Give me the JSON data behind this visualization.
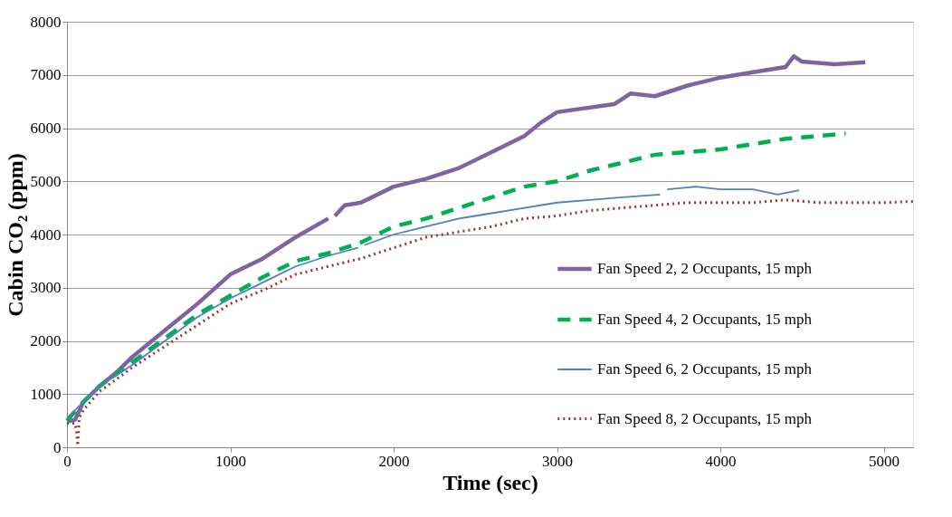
{
  "chart_data": {
    "type": "line",
    "xlabel": "Time (sec)",
    "ylabel": "Cabin CO₂ (ppm)",
    "xlim": [
      0,
      5180
    ],
    "xticks": [
      0,
      1000,
      2000,
      3000,
      4000,
      5000
    ],
    "ylim": [
      0,
      8000
    ],
    "yticks": [
      0,
      1000,
      2000,
      3000,
      4000,
      5000,
      6000,
      7000,
      8000
    ],
    "grid": "y",
    "legend": "right",
    "marker": "none",
    "series": [
      {
        "name": "Fan Speed 2, 2 Occupants, 15 mph",
        "color": "#8064a2",
        "line_style": "solid",
        "x": [
          0,
          50,
          100,
          200,
          300,
          400,
          500,
          600,
          800,
          1000,
          1200,
          1400,
          1600,
          1620,
          1640,
          1700,
          1800,
          2000,
          2200,
          2400,
          2600,
          2800,
          2900,
          3000,
          3350,
          3450,
          3600,
          3800,
          4000,
          4200,
          4400,
          4450,
          4500,
          4700,
          4887
        ],
        "values": [
          480,
          520,
          850,
          1150,
          1400,
          1700,
          1950,
          2200,
          2700,
          3250,
          3550,
          3950,
          4300,
          null,
          4350,
          4550,
          4600,
          4900,
          5050,
          5250,
          5550,
          5850,
          6100,
          6300,
          6450,
          6650,
          6600,
          6800,
          6950,
          7050,
          7150,
          7350,
          7250,
          7200,
          7240
        ]
      },
      {
        "name": "Fan Speed 4, 2 Occupants, 15 mph",
        "color": "#00b050",
        "line_style": "dashed",
        "x": [
          0,
          100,
          200,
          400,
          600,
          800,
          1000,
          1200,
          1400,
          1600,
          1800,
          2000,
          2200,
          2400,
          2600,
          2800,
          3000,
          3200,
          3400,
          3600,
          3800,
          4000,
          4200,
          4400,
          4600,
          4767
        ],
        "values": [
          500,
          850,
          1150,
          1600,
          2050,
          2500,
          2850,
          3200,
          3500,
          3650,
          3850,
          4150,
          4300,
          4500,
          4700,
          4900,
          5000,
          5200,
          5350,
          5500,
          5550,
          5600,
          5700,
          5800,
          5850,
          5900
        ]
      },
      {
        "name": "Fan Speed 6, 2 Occupants, 15 mph",
        "color": "#4f81bd",
        "line_style": "solid",
        "x": [
          0,
          100,
          200,
          400,
          600,
          800,
          1000,
          1200,
          1400,
          1600,
          1783,
          1800,
          1821,
          2000,
          2200,
          2400,
          2600,
          2800,
          3000,
          3200,
          3400,
          3631,
          3650,
          3675,
          3850,
          4000,
          4200,
          4350,
          4482
        ],
        "values": [
          550,
          850,
          1150,
          1550,
          2000,
          2450,
          2800,
          3100,
          3400,
          3600,
          3750,
          null,
          3800,
          4000,
          4150,
          4300,
          4400,
          4500,
          4600,
          4650,
          4700,
          4750,
          null,
          4850,
          4900,
          4850,
          4850,
          4750,
          4830
        ]
      },
      {
        "name": "Fan Speed 8, 2 Occupants, 15 mph",
        "color": "#953735",
        "line_style": "dotted",
        "x": [
          0,
          50,
          60,
          66,
          75,
          100,
          200,
          400,
          600,
          800,
          1000,
          1200,
          1400,
          1600,
          1800,
          2000,
          2200,
          2400,
          2600,
          2800,
          3000,
          3200,
          3400,
          3600,
          3800,
          4000,
          4200,
          4400,
          4600,
          4800,
          5000,
          5180
        ],
        "values": [
          450,
          450,
          250,
          30,
          550,
          700,
          1050,
          1500,
          1900,
          2300,
          2700,
          2950,
          3250,
          3400,
          3550,
          3750,
          3950,
          4050,
          4150,
          4300,
          4350,
          4450,
          4500,
          4550,
          4600,
          4600,
          4600,
          4650,
          4600,
          4600,
          4600,
          4620
        ]
      }
    ]
  }
}
